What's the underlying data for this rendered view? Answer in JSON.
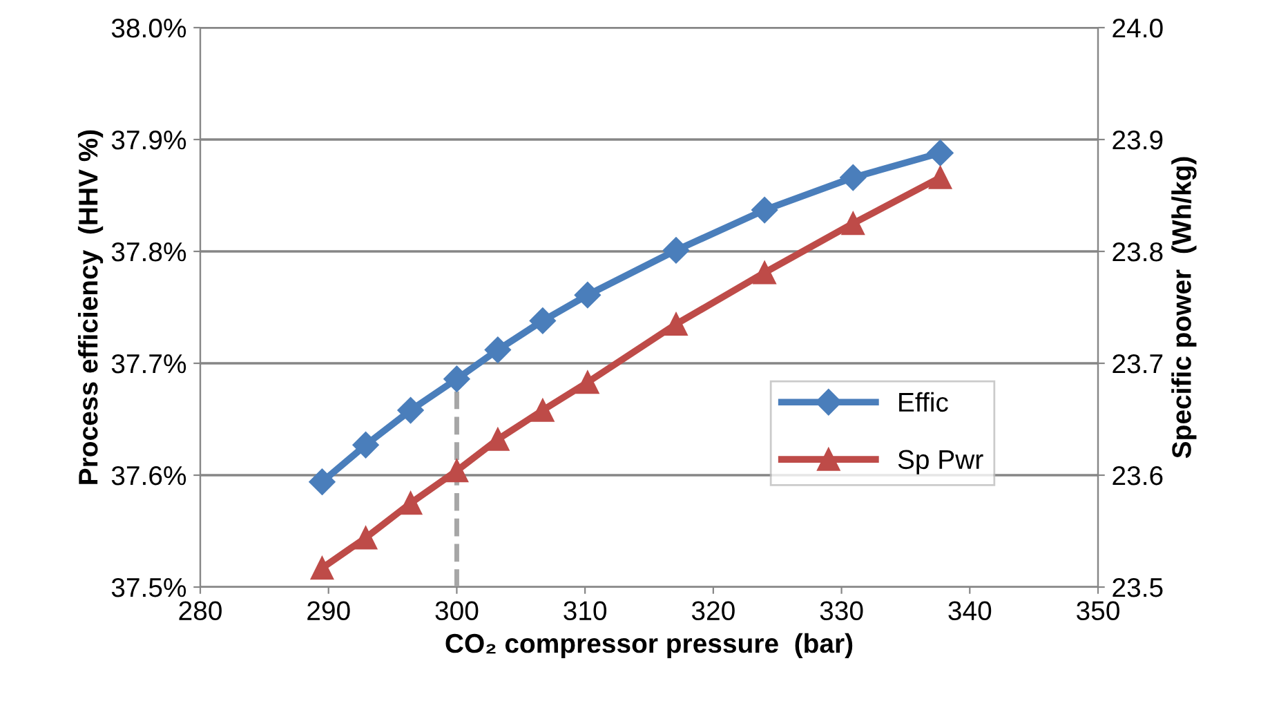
{
  "chart_data": {
    "type": "line",
    "xlabel": "CO₂ compressor pressure  (bar)",
    "ylabel": "Process efficiency  (HHV %)",
    "y2label": "Specific power  (Wh/kg)",
    "series": [
      {
        "name": "Effic",
        "color": "#4a7ebb",
        "marker": "diamond",
        "x": [
          289.5,
          292.9,
          296.4,
          300,
          303.2,
          306.7,
          310.2,
          317.1,
          324.0,
          330.9,
          337.7
        ],
        "values": [
          37.594,
          37.627,
          37.658,
          37.686,
          37.712,
          37.738,
          37.761,
          37.801,
          37.837,
          37.866,
          37.888
        ]
      },
      {
        "name": "Sp Pwr",
        "color": "#be4b48",
        "marker": "triangle",
        "axis": "y2",
        "x": [
          289.5,
          292.9,
          296.4,
          300,
          303.2,
          306.7,
          310.2,
          317.1,
          324.0,
          330.9,
          337.7
        ],
        "values": [
          23.517,
          23.544,
          23.575,
          23.604,
          23.632,
          23.658,
          23.683,
          23.735,
          23.781,
          23.825,
          23.866
        ]
      }
    ],
    "xlim": [
      280,
      350
    ],
    "xticks": [
      280,
      290,
      300,
      310,
      320,
      330,
      340,
      350
    ],
    "ylim": [
      37.5,
      38.0
    ],
    "yticks": [
      {
        "value": 37.5,
        "label": "37.5%"
      },
      {
        "value": 37.6,
        "label": "37.6%"
      },
      {
        "value": 37.7,
        "label": "37.7%"
      },
      {
        "value": 37.8,
        "label": "37.8%"
      },
      {
        "value": 37.9,
        "label": "37.9%"
      },
      {
        "value": 38.0,
        "label": "38.0%"
      }
    ],
    "y2lim": [
      23.5,
      24.0
    ],
    "y2ticks": [
      23.5,
      23.6,
      23.7,
      23.8,
      23.9,
      {
        "value": 24.0,
        "label": "24.0"
      }
    ],
    "ref_lines": [
      {
        "axis": "x",
        "value": 300,
        "color": "#a6a6a6",
        "line_style": "dashed"
      }
    ],
    "grid": "y",
    "legend": "right",
    "line_style": "solid"
  }
}
